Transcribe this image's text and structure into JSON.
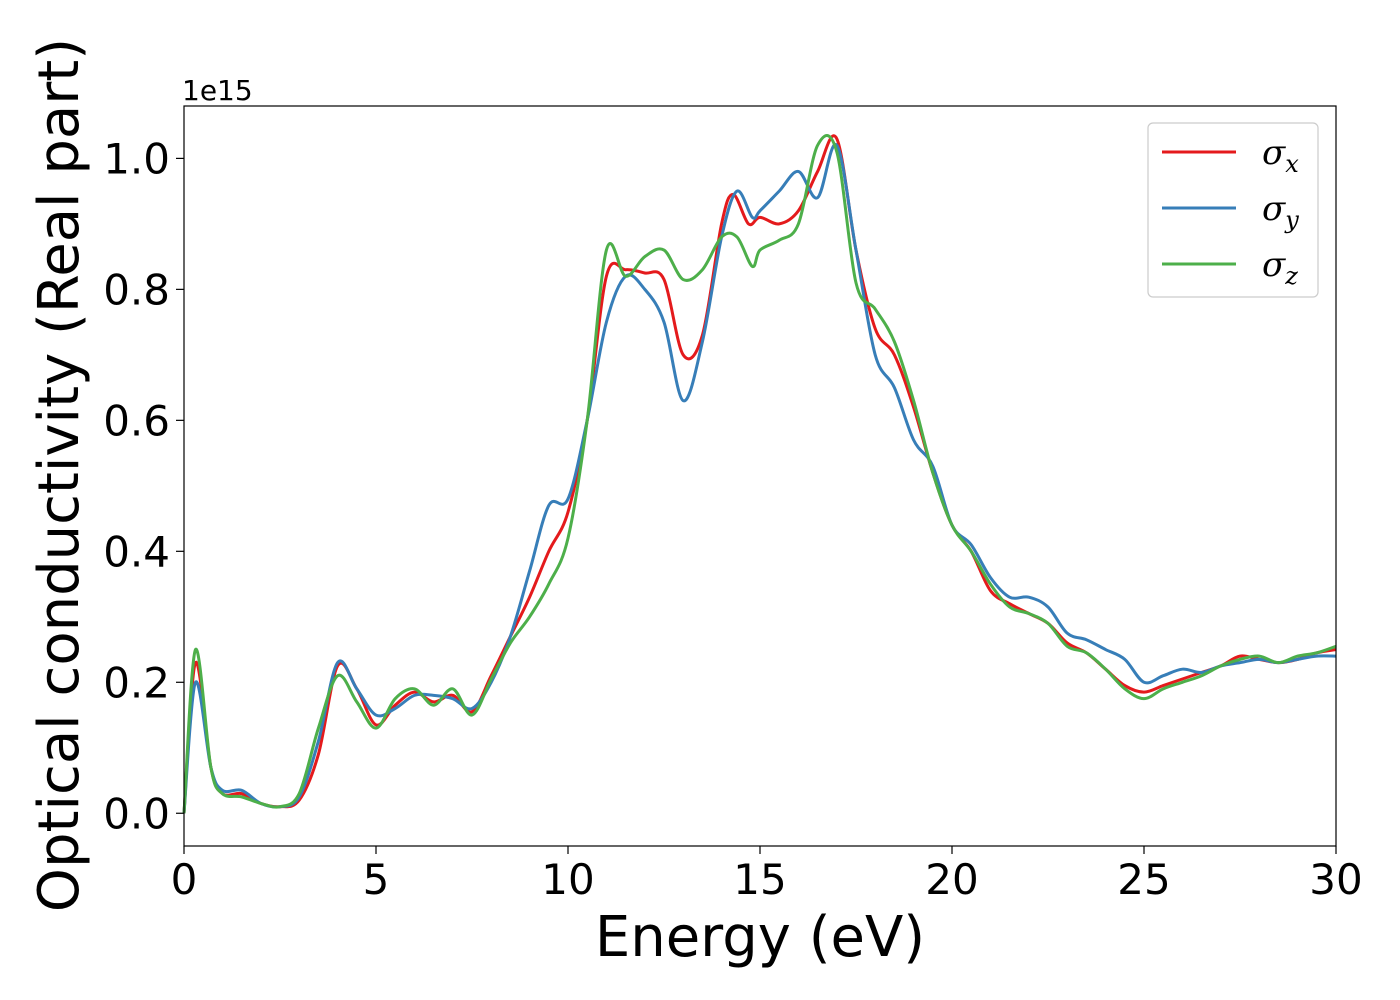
{
  "chart_data": {
    "type": "line",
    "title": "",
    "xlabel": "Energy (eV)",
    "ylabel": "Optical conductivity (Real part)",
    "y_offset_text": "1e15",
    "xlim": [
      0,
      30
    ],
    "ylim": [
      -0.05,
      1.08
    ],
    "x_ticks": [
      0,
      5,
      10,
      15,
      20,
      25,
      30
    ],
    "x_tick_labels": [
      "0",
      "5",
      "10",
      "15",
      "20",
      "25",
      "30"
    ],
    "y_ticks": [
      0.0,
      0.2,
      0.4,
      0.6,
      0.8,
      1.0
    ],
    "y_tick_labels": [
      "0.0",
      "0.2",
      "0.4",
      "0.6",
      "0.8",
      "1.0"
    ],
    "grid": false,
    "legend_position": "top-right",
    "series": [
      {
        "name": "σx",
        "base": "σ",
        "sub": "x",
        "color": "#e41a1c",
        "x": [
          0,
          0.3,
          0.7,
          1.0,
          1.5,
          2.0,
          2.5,
          3.0,
          3.5,
          4.0,
          4.5,
          5.0,
          5.5,
          6.0,
          6.5,
          7.0,
          7.5,
          8.0,
          8.5,
          9.0,
          9.5,
          10.0,
          10.5,
          11.0,
          11.5,
          12.0,
          12.5,
          13.0,
          13.5,
          14.0,
          14.3,
          14.7,
          15.0,
          15.5,
          16.0,
          16.5,
          17.0,
          17.5,
          18.0,
          18.5,
          19.0,
          19.5,
          20.0,
          20.5,
          21.0,
          21.5,
          22.0,
          22.5,
          23.0,
          23.5,
          24.0,
          24.5,
          25.0,
          25.5,
          26.0,
          26.5,
          27.0,
          27.5,
          28.0,
          28.5,
          29.0,
          29.5,
          30.0
        ],
        "y": [
          0.0,
          0.23,
          0.07,
          0.03,
          0.03,
          0.015,
          0.01,
          0.02,
          0.09,
          0.225,
          0.19,
          0.135,
          0.165,
          0.185,
          0.17,
          0.18,
          0.155,
          0.21,
          0.27,
          0.33,
          0.4,
          0.46,
          0.6,
          0.82,
          0.83,
          0.825,
          0.815,
          0.7,
          0.73,
          0.9,
          0.945,
          0.9,
          0.91,
          0.9,
          0.92,
          0.98,
          1.03,
          0.86,
          0.74,
          0.7,
          0.62,
          0.52,
          0.44,
          0.4,
          0.34,
          0.32,
          0.305,
          0.29,
          0.26,
          0.245,
          0.22,
          0.195,
          0.185,
          0.195,
          0.205,
          0.215,
          0.225,
          0.24,
          0.235,
          0.23,
          0.235,
          0.245,
          0.25
        ]
      },
      {
        "name": "σy",
        "base": "σ",
        "sub": "y",
        "color": "#377eb8",
        "x": [
          0,
          0.3,
          0.7,
          1.0,
          1.5,
          2.0,
          2.5,
          3.0,
          3.5,
          4.0,
          4.5,
          5.0,
          5.5,
          6.0,
          6.5,
          7.0,
          7.5,
          8.0,
          8.5,
          9.0,
          9.5,
          10.0,
          10.5,
          11.0,
          11.5,
          12.0,
          12.5,
          13.0,
          13.5,
          14.0,
          14.4,
          14.8,
          15.0,
          15.5,
          16.0,
          16.5,
          17.0,
          17.5,
          18.0,
          18.5,
          19.0,
          19.5,
          20.0,
          20.5,
          21.0,
          21.5,
          22.0,
          22.5,
          23.0,
          23.5,
          24.0,
          24.5,
          25.0,
          25.5,
          26.0,
          26.5,
          27.0,
          27.5,
          28.0,
          28.5,
          29.0,
          29.5,
          30.0
        ],
        "y": [
          0.0,
          0.2,
          0.07,
          0.035,
          0.035,
          0.015,
          0.01,
          0.025,
          0.11,
          0.23,
          0.19,
          0.15,
          0.16,
          0.18,
          0.18,
          0.175,
          0.16,
          0.2,
          0.27,
          0.37,
          0.47,
          0.48,
          0.6,
          0.75,
          0.82,
          0.8,
          0.75,
          0.63,
          0.72,
          0.88,
          0.95,
          0.91,
          0.92,
          0.95,
          0.98,
          0.94,
          1.02,
          0.86,
          0.7,
          0.65,
          0.57,
          0.53,
          0.44,
          0.41,
          0.36,
          0.33,
          0.33,
          0.315,
          0.275,
          0.265,
          0.25,
          0.235,
          0.2,
          0.21,
          0.22,
          0.215,
          0.225,
          0.23,
          0.235,
          0.23,
          0.235,
          0.24,
          0.24
        ]
      },
      {
        "name": "σz",
        "base": "σ",
        "sub": "z",
        "color": "#4daf4a",
        "x": [
          0,
          0.3,
          0.7,
          1.0,
          1.5,
          2.0,
          2.5,
          3.0,
          3.5,
          4.0,
          4.5,
          5.0,
          5.5,
          6.0,
          6.5,
          7.0,
          7.5,
          8.0,
          8.5,
          9.0,
          9.5,
          10.0,
          10.5,
          11.0,
          11.5,
          12.0,
          12.5,
          13.0,
          13.5,
          14.0,
          14.4,
          14.8,
          15.0,
          15.5,
          16.0,
          16.5,
          17.0,
          17.5,
          18.0,
          18.5,
          19.0,
          19.5,
          20.0,
          20.5,
          21.0,
          21.5,
          22.0,
          22.5,
          23.0,
          23.5,
          24.0,
          24.5,
          25.0,
          25.5,
          26.0,
          26.5,
          27.0,
          27.5,
          28.0,
          28.5,
          29.0,
          29.5,
          30.0
        ],
        "y": [
          0.0,
          0.25,
          0.07,
          0.03,
          0.025,
          0.015,
          0.01,
          0.03,
          0.13,
          0.21,
          0.17,
          0.13,
          0.175,
          0.19,
          0.165,
          0.19,
          0.15,
          0.205,
          0.26,
          0.3,
          0.35,
          0.42,
          0.6,
          0.86,
          0.82,
          0.85,
          0.86,
          0.815,
          0.83,
          0.88,
          0.88,
          0.835,
          0.86,
          0.875,
          0.9,
          1.02,
          1.01,
          0.81,
          0.77,
          0.72,
          0.63,
          0.52,
          0.44,
          0.4,
          0.35,
          0.315,
          0.305,
          0.29,
          0.255,
          0.245,
          0.22,
          0.19,
          0.175,
          0.19,
          0.2,
          0.21,
          0.225,
          0.235,
          0.24,
          0.23,
          0.24,
          0.245,
          0.255
        ]
      }
    ]
  }
}
